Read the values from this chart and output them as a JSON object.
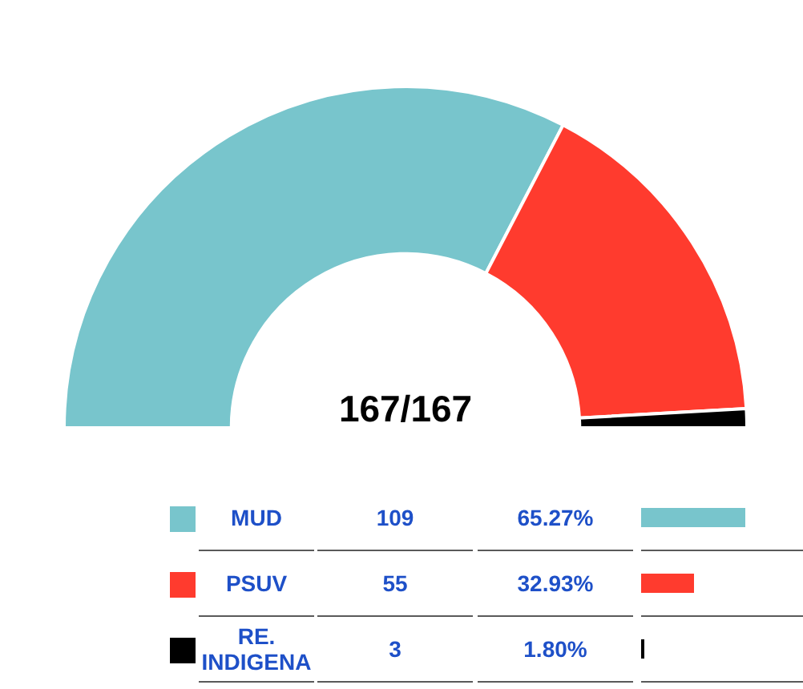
{
  "chart_data": {
    "type": "donut",
    "categories": [
      "MUD",
      "PSUV",
      "RE. INDIGENA"
    ],
    "values": [
      109,
      55,
      3
    ],
    "colors": [
      "#78c5cc",
      "#ff3b2e",
      "#000000"
    ],
    "annotations": [
      "167/167",
      {
        "text": "65.27%",
        "x": "MUD"
      },
      {
        "text": "32.93%",
        "x": "PSUV"
      },
      {
        "text": "1.80%",
        "x": "RE. INDIGENA"
      }
    ],
    "data_labels": true,
    "legend": "bottom"
  }
}
